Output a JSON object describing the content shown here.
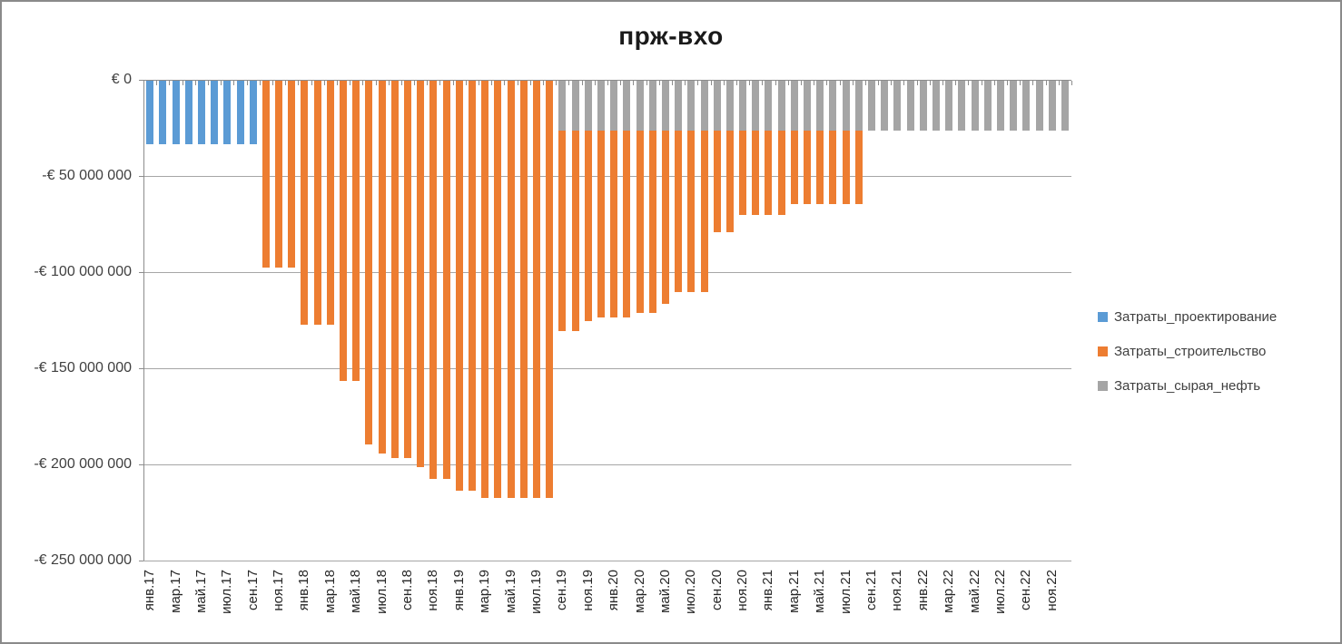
{
  "title": "прж-вхо",
  "legend": [
    {
      "label": "Затраты_проектирование",
      "color": "#5B9BD5"
    },
    {
      "label": "Затраты_строительство",
      "color": "#ED7D31"
    },
    {
      "label": "Затраты_сырая_нефть",
      "color": "#A5A5A5"
    }
  ],
  "chart_data": {
    "type": "bar",
    "stacked": true,
    "title": "прж-вхо",
    "xlabel": "",
    "ylabel": "",
    "ylim": [
      -250000000,
      0
    ],
    "grid": true,
    "legend_position": "right",
    "currency": "EUR",
    "y_ticks": [
      "€ 0",
      "-€ 50 000 000",
      "-€ 100 000 000",
      "-€ 150 000 000",
      "-€ 200 000 000",
      "-€ 250 000 000"
    ],
    "y_tick_values": [
      0,
      -50000000,
      -100000000,
      -150000000,
      -200000000,
      -250000000
    ],
    "x": [
      "янв.17",
      "фев.17",
      "мар.17",
      "апр.17",
      "май.17",
      "июн.17",
      "июл.17",
      "авг.17",
      "сен.17",
      "окт.17",
      "ноя.17",
      "дек.17",
      "янв.18",
      "фев.18",
      "мар.18",
      "апр.18",
      "май.18",
      "июн.18",
      "июл.18",
      "авг.18",
      "сен.18",
      "окт.18",
      "ноя.18",
      "дек.18",
      "янв.19",
      "фев.19",
      "мар.19",
      "апр.19",
      "май.19",
      "июн.19",
      "июл.19",
      "авг.19",
      "сен.19",
      "окт.19",
      "ноя.19",
      "дек.19",
      "янв.20",
      "фев.20",
      "мар.20",
      "апр.20",
      "май.20",
      "июн.20",
      "июл.20",
      "авг.20",
      "сен.20",
      "окт.20",
      "ноя.20",
      "дек.20",
      "янв.21",
      "фев.21",
      "мар.21",
      "апр.21",
      "май.21",
      "июн.21",
      "июл.21",
      "авг.21",
      "сен.21",
      "окт.21",
      "ноя.21",
      "дек.21",
      "янв.22",
      "фев.22",
      "мар.22",
      "апр.22",
      "май.22",
      "июн.22",
      "июл.22",
      "авг.22",
      "сен.22",
      "окт.22",
      "ноя.22",
      "дек.22"
    ],
    "x_tick_labels": [
      "янв.17",
      "мар.17",
      "май.17",
      "июл.17",
      "сен.17",
      "ноя.17",
      "янв.18",
      "мар.18",
      "май.18",
      "июл.18",
      "сен.18",
      "ноя.18",
      "янв.19",
      "мар.19",
      "май.19",
      "июл.19",
      "сен.19",
      "ноя.19",
      "янв.20",
      "мар.20",
      "май.20",
      "июл.20",
      "сен.20",
      "ноя.20",
      "янв.21",
      "мар.21",
      "май.21",
      "июл.21",
      "сен.21",
      "ноя.21",
      "янв.22",
      "мар.22",
      "май.22",
      "июл.22",
      "сен.22",
      "ноя.22"
    ],
    "visual_stack_order_from_zero": [
      "Затраты_сырая_нефть",
      "Затраты_строительство",
      "Затраты_проектирование"
    ],
    "series": [
      {
        "name": "Затраты_проектирование",
        "color": "#5B9BD5",
        "values": [
          -33000000,
          -33000000,
          -33000000,
          -33000000,
          -33000000,
          -33000000,
          -33000000,
          -33000000,
          -33000000,
          0,
          0,
          0,
          0,
          0,
          0,
          0,
          0,
          0,
          0,
          0,
          0,
          0,
          0,
          0,
          0,
          0,
          0,
          0,
          0,
          0,
          0,
          0,
          0,
          0,
          0,
          0,
          0,
          0,
          0,
          0,
          0,
          0,
          0,
          0,
          0,
          0,
          0,
          0,
          0,
          0,
          0,
          0,
          0,
          0,
          0,
          0,
          0,
          0,
          0,
          0,
          0,
          0,
          0,
          0,
          0,
          0,
          0,
          0,
          0,
          0,
          0,
          0
        ]
      },
      {
        "name": "Затраты_строительство",
        "color": "#ED7D31",
        "values": [
          0,
          0,
          0,
          0,
          0,
          0,
          0,
          0,
          0,
          -97000000,
          -97000000,
          -97000000,
          -127000000,
          -127000000,
          -127000000,
          -156000000,
          -156000000,
          -189000000,
          -194000000,
          -196000000,
          -196000000,
          -201000000,
          -207000000,
          -207000000,
          -213000000,
          -213000000,
          -217000000,
          -217000000,
          -217000000,
          -217000000,
          -217000000,
          -217000000,
          -104000000,
          -104000000,
          -99000000,
          -97000000,
          -97000000,
          -97000000,
          -95000000,
          -95000000,
          -90000000,
          -84000000,
          -84000000,
          -84000000,
          -53000000,
          -53000000,
          -44000000,
          -44000000,
          -44000000,
          -44000000,
          -38000000,
          -38000000,
          -38000000,
          -38000000,
          -38000000,
          -38000000,
          0,
          0,
          0,
          0,
          0,
          0,
          0,
          0,
          0,
          0,
          0,
          0,
          0,
          0,
          0,
          0
        ]
      },
      {
        "name": "Затраты_сырая_нефть",
        "color": "#A5A5A5",
        "values": [
          0,
          0,
          0,
          0,
          0,
          0,
          0,
          0,
          0,
          0,
          0,
          0,
          0,
          0,
          0,
          0,
          0,
          0,
          0,
          0,
          0,
          0,
          0,
          0,
          0,
          0,
          0,
          0,
          0,
          0,
          0,
          0,
          -26000000,
          -26000000,
          -26000000,
          -26000000,
          -26000000,
          -26000000,
          -26000000,
          -26000000,
          -26000000,
          -26000000,
          -26000000,
          -26000000,
          -26000000,
          -26000000,
          -26000000,
          -26000000,
          -26000000,
          -26000000,
          -26000000,
          -26000000,
          -26000000,
          -26000000,
          -26000000,
          -26000000,
          -26000000,
          -26000000,
          -26000000,
          -26000000,
          -26000000,
          -26000000,
          -26000000,
          -26000000,
          -26000000,
          -26000000,
          -26000000,
          -26000000,
          -26000000,
          -26000000,
          -26000000,
          -26000000
        ]
      }
    ]
  }
}
